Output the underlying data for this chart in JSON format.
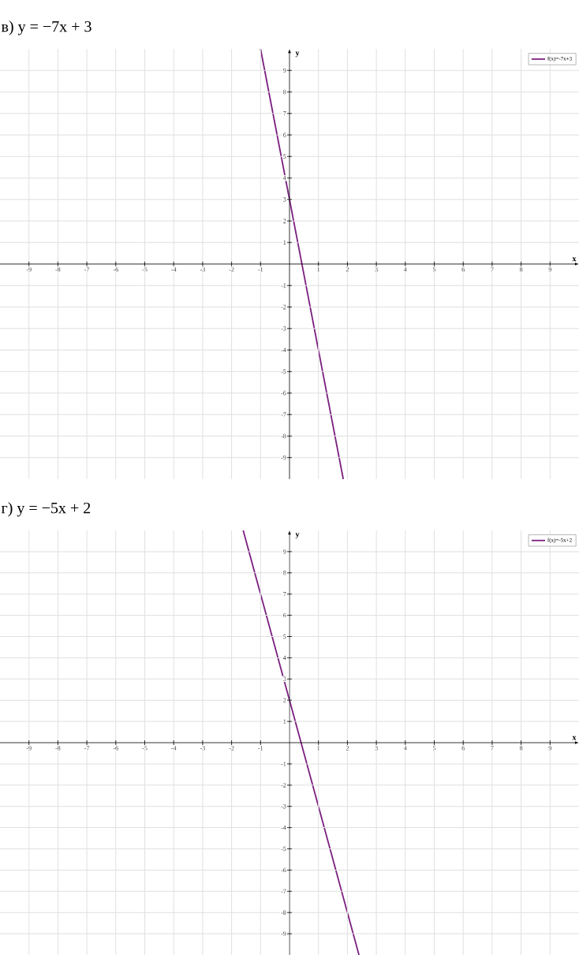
{
  "chart_data": [
    {
      "type": "line",
      "title": "в) y = −7x + 3",
      "xlabel": "x",
      "ylabel": "y",
      "xlim": [
        -10,
        10
      ],
      "ylim": [
        -10,
        10
      ],
      "xticks": [
        -9,
        -8,
        -7,
        -6,
        -5,
        -4,
        -3,
        -2,
        -1,
        1,
        2,
        3,
        4,
        5,
        6,
        7,
        8,
        9
      ],
      "yticks": [
        -9,
        -8,
        -7,
        -6,
        -5,
        -4,
        -3,
        -2,
        -1,
        1,
        2,
        3,
        4,
        5,
        6,
        7,
        8,
        9
      ],
      "grid": true,
      "legend": "top right",
      "marker": "none",
      "line_style": "solid",
      "series": [
        {
          "name": "f(x)=-7x+3",
          "color": "#7b1f7f",
          "x": [
            -1,
            1.857
          ],
          "values": [
            10,
            -10
          ]
        }
      ]
    },
    {
      "type": "line",
      "title": "г) y = −5x + 2",
      "xlabel": "x",
      "ylabel": "y",
      "xlim": [
        -10,
        10
      ],
      "ylim": [
        -10,
        10
      ],
      "xticks": [
        -9,
        -8,
        -7,
        -6,
        -5,
        -4,
        -3,
        -2,
        -1,
        1,
        2,
        3,
        4,
        5,
        6,
        7,
        8,
        9
      ],
      "yticks": [
        -9,
        -8,
        -7,
        -6,
        -5,
        -4,
        -3,
        -2,
        -1,
        1,
        2,
        3,
        4,
        5,
        6,
        7,
        8,
        9
      ],
      "grid": true,
      "legend": "top right",
      "marker": "none",
      "line_style": "solid",
      "series": [
        {
          "name": "f(x)=-5x+2",
          "color": "#7b1f7f",
          "x": [
            -1.6,
            2.4
          ],
          "values": [
            10,
            -10
          ]
        }
      ]
    }
  ]
}
